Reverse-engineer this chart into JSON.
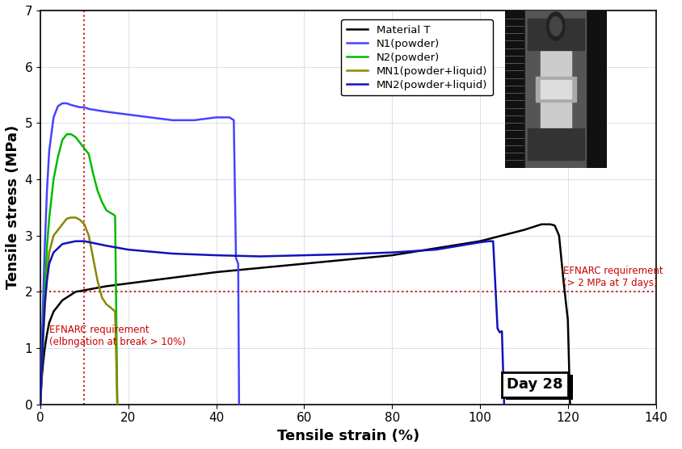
{
  "xlabel": "Tensile strain (%)",
  "ylabel": "Tensile stress (MPa)",
  "xlim": [
    0,
    140
  ],
  "ylim": [
    0,
    7
  ],
  "xticks": [
    0,
    20,
    40,
    60,
    80,
    100,
    120,
    140
  ],
  "yticks": [
    0,
    1,
    2,
    3,
    4,
    5,
    6,
    7
  ],
  "efnarc_x_line": 10,
  "efnarc_y_line": 2.0,
  "efnarc_x_label": "EFNARC requirement\n(elbngation at break > 10%)",
  "efnarc_y_label": "EFNARC requirement\n(> 2 MPa at 7 days)",
  "day_label": "Day 28",
  "legend_entries": [
    "Material T",
    "N1(powder)",
    "N2(powder)",
    "MN1(powder+liquid)",
    "MN2(powder+liquid)"
  ],
  "line_colors": [
    "#000000",
    "#4444ff",
    "#00bb00",
    "#888800",
    "#1111bb"
  ],
  "line_widths": [
    1.8,
    1.8,
    1.8,
    1.8,
    1.8
  ],
  "curves": {
    "MaterialT": {
      "x": [
        0,
        0.3,
        0.6,
        1,
        1.5,
        2,
        3,
        5,
        8,
        15,
        25,
        40,
        60,
        80,
        100,
        110,
        114,
        116,
        117,
        118,
        119,
        120,
        120.5
      ],
      "y": [
        0,
        0.45,
        0.72,
        1.0,
        1.25,
        1.45,
        1.65,
        1.85,
        2.0,
        2.1,
        2.2,
        2.35,
        2.5,
        2.65,
        2.9,
        3.1,
        3.2,
        3.2,
        3.18,
        3.0,
        2.2,
        1.5,
        0
      ]
    },
    "N1powder": {
      "x": [
        0,
        0.3,
        0.6,
        1,
        1.5,
        2,
        3,
        4,
        5,
        6,
        7,
        8,
        9,
        10,
        11,
        15,
        20,
        25,
        30,
        35,
        40,
        43,
        44,
        44.5,
        45,
        45.2
      ],
      "y": [
        0,
        0.9,
        1.8,
        2.8,
        3.8,
        4.5,
        5.1,
        5.3,
        5.35,
        5.35,
        5.32,
        5.3,
        5.28,
        5.28,
        5.25,
        5.2,
        5.15,
        5.1,
        5.05,
        5.05,
        5.1,
        5.1,
        5.05,
        2.6,
        2.5,
        0
      ]
    },
    "N2powder": {
      "x": [
        0,
        0.3,
        0.6,
        1,
        1.5,
        2,
        3,
        4,
        5,
        6,
        7,
        8,
        9,
        10,
        11,
        12,
        13,
        14,
        15,
        16,
        16.5,
        17,
        17.5
      ],
      "y": [
        0,
        0.7,
        1.3,
        2.0,
        2.8,
        3.3,
        4.0,
        4.4,
        4.7,
        4.8,
        4.8,
        4.75,
        4.65,
        4.55,
        4.45,
        4.1,
        3.8,
        3.6,
        3.45,
        3.4,
        3.38,
        3.35,
        0
      ]
    },
    "MN1": {
      "x": [
        0,
        0.3,
        0.6,
        1,
        1.5,
        2,
        3,
        4,
        5,
        6,
        7,
        8,
        9,
        10,
        11,
        12,
        13,
        14,
        15,
        16,
        17,
        17.5
      ],
      "y": [
        0,
        0.6,
        1.1,
        1.7,
        2.3,
        2.7,
        3.0,
        3.1,
        3.2,
        3.3,
        3.32,
        3.32,
        3.28,
        3.2,
        3.0,
        2.6,
        2.2,
        1.9,
        1.78,
        1.72,
        1.65,
        0
      ]
    },
    "MN2": {
      "x": [
        0,
        0.3,
        0.6,
        1,
        1.5,
        2,
        3,
        5,
        8,
        10,
        15,
        20,
        30,
        40,
        50,
        60,
        70,
        80,
        90,
        100,
        102,
        103,
        104,
        104.5,
        105,
        105.5
      ],
      "y": [
        0,
        0.65,
        1.2,
        1.8,
        2.2,
        2.5,
        2.7,
        2.85,
        2.9,
        2.9,
        2.82,
        2.75,
        2.68,
        2.65,
        2.63,
        2.65,
        2.67,
        2.7,
        2.75,
        2.88,
        2.9,
        2.9,
        1.35,
        1.28,
        1.3,
        0
      ]
    }
  }
}
